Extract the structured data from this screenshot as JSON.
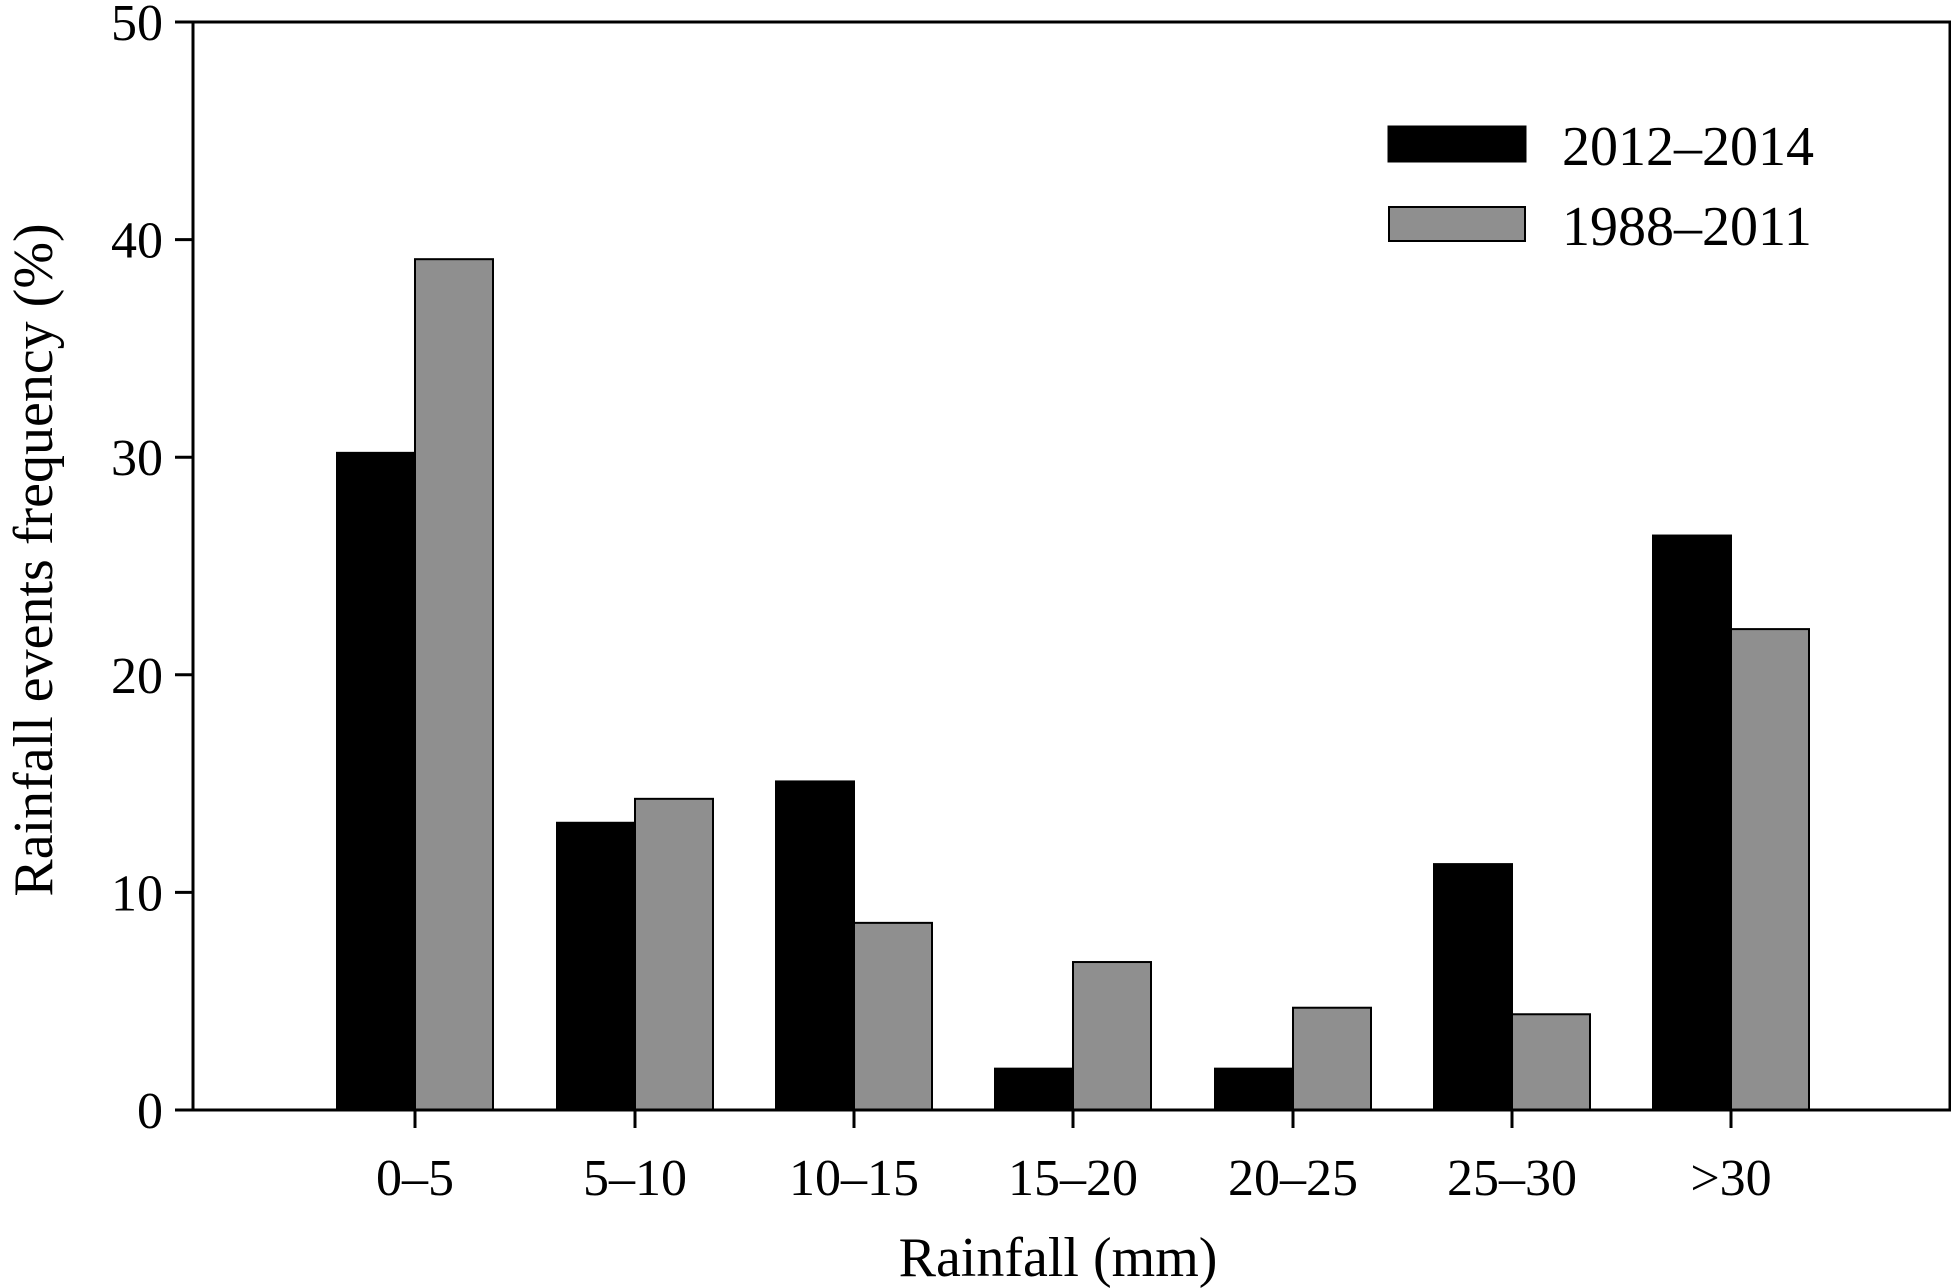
{
  "chart_data": {
    "type": "bar",
    "title": "",
    "xlabel": "Rainfall (mm)",
    "ylabel": "Rainfall events frequency (%)",
    "categories": [
      "0–5",
      "5–10",
      "10–15",
      "15–20",
      "20–25",
      "25–30",
      ">30"
    ],
    "ylim": [
      0,
      50
    ],
    "yticks": [
      0,
      10,
      20,
      30,
      40,
      50
    ],
    "grid": false,
    "legend_position": "top-right",
    "series": [
      {
        "name": "2012–2014",
        "color": "#000000",
        "values": [
          30.2,
          13.2,
          15.1,
          1.9,
          1.9,
          11.3,
          26.4
        ]
      },
      {
        "name": "1988–2011",
        "color": "#8f8f8f",
        "values": [
          39.1,
          14.3,
          8.6,
          6.8,
          4.7,
          4.4,
          22.1
        ]
      }
    ]
  }
}
